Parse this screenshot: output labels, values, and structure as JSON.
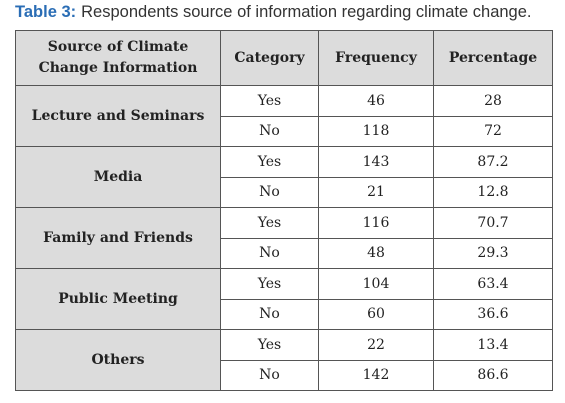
{
  "caption": {
    "label": "Table 3:",
    "text": "Respondents source of information regarding climate change."
  },
  "table": {
    "header": [
      "Source of Climate Change Information",
      "Category",
      "Frequency",
      "Percentage"
    ],
    "groups": [
      {
        "source": "Lecture and Seminars",
        "rows": [
          [
            "Yes",
            46,
            28
          ],
          [
            "No",
            118,
            72
          ]
        ]
      },
      {
        "source": "Media",
        "rows": [
          [
            "Yes",
            143,
            87.2
          ],
          [
            "No",
            21,
            12.8
          ]
        ]
      },
      {
        "source": "Family and Friends",
        "rows": [
          [
            "Yes",
            116,
            70.7
          ],
          [
            "No",
            48,
            29.3
          ]
        ]
      },
      {
        "source": "Public Meeting",
        "rows": [
          [
            "Yes",
            104,
            63.4
          ],
          [
            "No",
            60,
            36.6
          ]
        ]
      },
      {
        "source": "Others",
        "rows": [
          [
            "Yes",
            22,
            13.4
          ],
          [
            "No",
            142,
            86.6
          ]
        ]
      }
    ]
  }
}
